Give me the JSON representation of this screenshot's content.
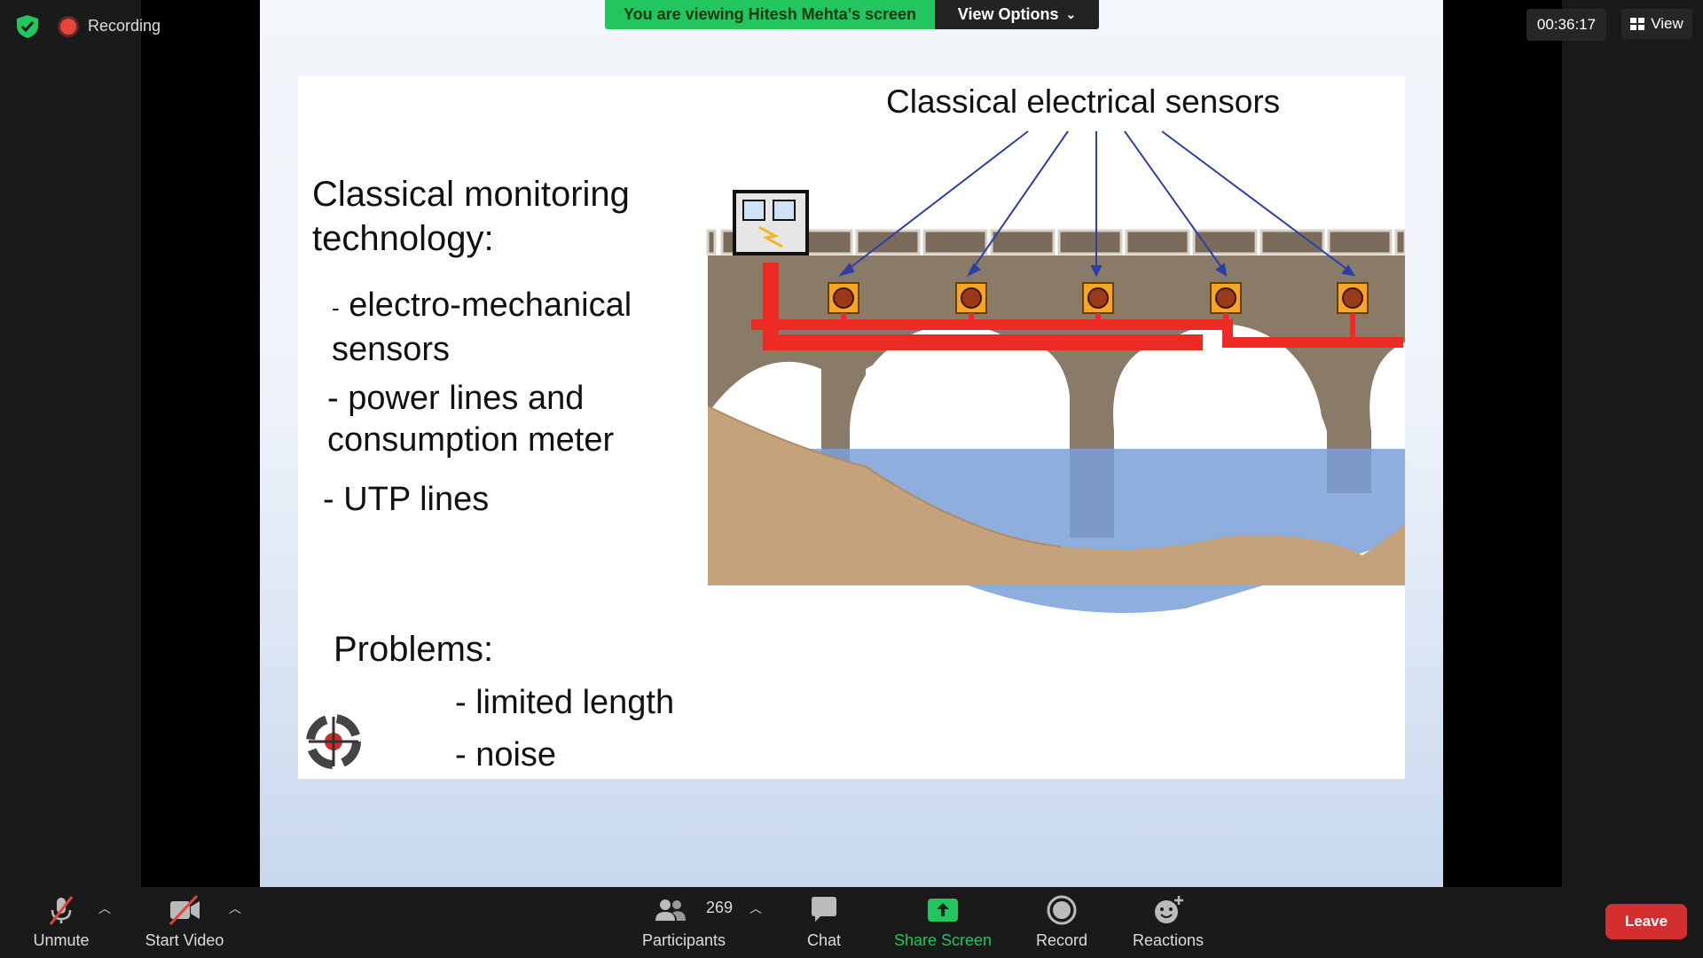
{
  "top_bar": {
    "recording_label": "Recording",
    "viewing_banner": "You are viewing Hitesh Mehta's screen",
    "view_options": "View Options",
    "timer": "00:36:17",
    "view_label": "View"
  },
  "slide": {
    "heading": "Classical monitoring technology:",
    "bullets": [
      "- electro-mechanical sensors",
      "- power lines and consumption meter",
      "- UTP lines"
    ],
    "bullet1_dash": "-",
    "bullet1_text": "electro-mechanical sensors",
    "problems_heading": "Problems:",
    "problems": [
      "- limited length",
      "- noise"
    ],
    "diagram_title": "Classical electrical sensors"
  },
  "toolbar": {
    "unmute": "Unmute",
    "start_video": "Start Video",
    "participants": "Participants",
    "participant_count": "269",
    "chat": "Chat",
    "share_screen": "Share Screen",
    "record": "Record",
    "reactions": "Reactions",
    "leave": "Leave"
  },
  "colors": {
    "banner_green": "#22c55e",
    "share_green": "#22c55e",
    "leave_red": "#d32f2f",
    "power_line_red": "#ee2a24",
    "bridge_brown": "#8a7a68"
  }
}
